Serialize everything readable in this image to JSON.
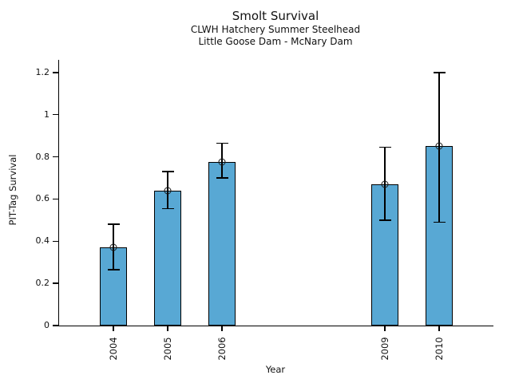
{
  "figure": {
    "title": "Smolt Survival",
    "subtitle1": "CLWH Hatchery Summer Steelhead",
    "subtitle2": "Little Goose Dam - McNary Dam"
  },
  "chart_data": {
    "type": "bar",
    "title": "Smolt Survival",
    "subtitle": [
      "CLWH Hatchery Summer Steelhead",
      "Little Goose Dam - McNary Dam"
    ],
    "xlabel": "Year",
    "ylabel": "PIT-Tag Survival",
    "categories": [
      "2004",
      "2005",
      "2006",
      "2009",
      "2010"
    ],
    "x_numeric": [
      2004,
      2005,
      2006,
      2009,
      2010
    ],
    "values": [
      0.37,
      0.64,
      0.775,
      0.67,
      0.85
    ],
    "error_low": [
      0.265,
      0.555,
      0.7,
      0.5,
      0.49
    ],
    "error_high": [
      0.48,
      0.73,
      0.865,
      0.845,
      1.2
    ],
    "xlim": [
      2003,
      2011
    ],
    "ylim": [
      0,
      1.26
    ],
    "yticks": [
      0,
      0.2,
      0.4,
      0.6,
      0.8,
      1,
      1.2
    ],
    "ytick_labels": [
      "0",
      "0.2",
      "0.4",
      "0.6",
      "0.8",
      "1",
      "1.2"
    ],
    "bar_width_years": 0.5,
    "bar_color": "#58A8D4",
    "bar_edge_color": "#000000",
    "error_color": "#000000",
    "marker": "open-circle",
    "grid": false,
    "legend": null
  }
}
